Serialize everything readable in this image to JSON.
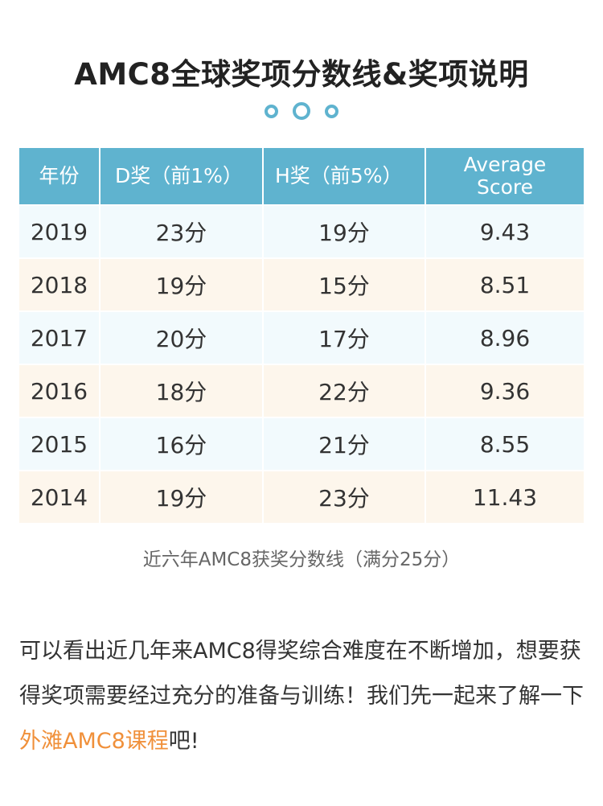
{
  "title": "AMC8全球奖项分数线&奖项说明",
  "table": {
    "headers": [
      "年份",
      "D奖（前1%）",
      "H奖（前5%）",
      "Average Score"
    ],
    "rows": [
      [
        "2019",
        "23分",
        "19分",
        "9.43"
      ],
      [
        "2018",
        "19分",
        "15分",
        "8.51"
      ],
      [
        "2017",
        "20分",
        "17分",
        "8.96"
      ],
      [
        "2016",
        "18分",
        "22分",
        "9.36"
      ],
      [
        "2015",
        "16分",
        "21分",
        "8.55"
      ],
      [
        "2014",
        "19分",
        "23分",
        "11.43"
      ]
    ]
  },
  "caption": "近六年AMC8获奖分数线（满分25分）",
  "paragraph": {
    "text_before": "可以看出近几年来AMC8得奖综合难度在不断增加，想要获得奖项需要经过充分的准备与训练！我们先一起来了解一下",
    "highlight": "外滩AMC8课程",
    "text_after": "吧!"
  },
  "colors": {
    "header": "#5fb3cf",
    "row_odd": "#f2fafd",
    "row_even": "#fdf6ec",
    "highlight": "#f0903a"
  }
}
